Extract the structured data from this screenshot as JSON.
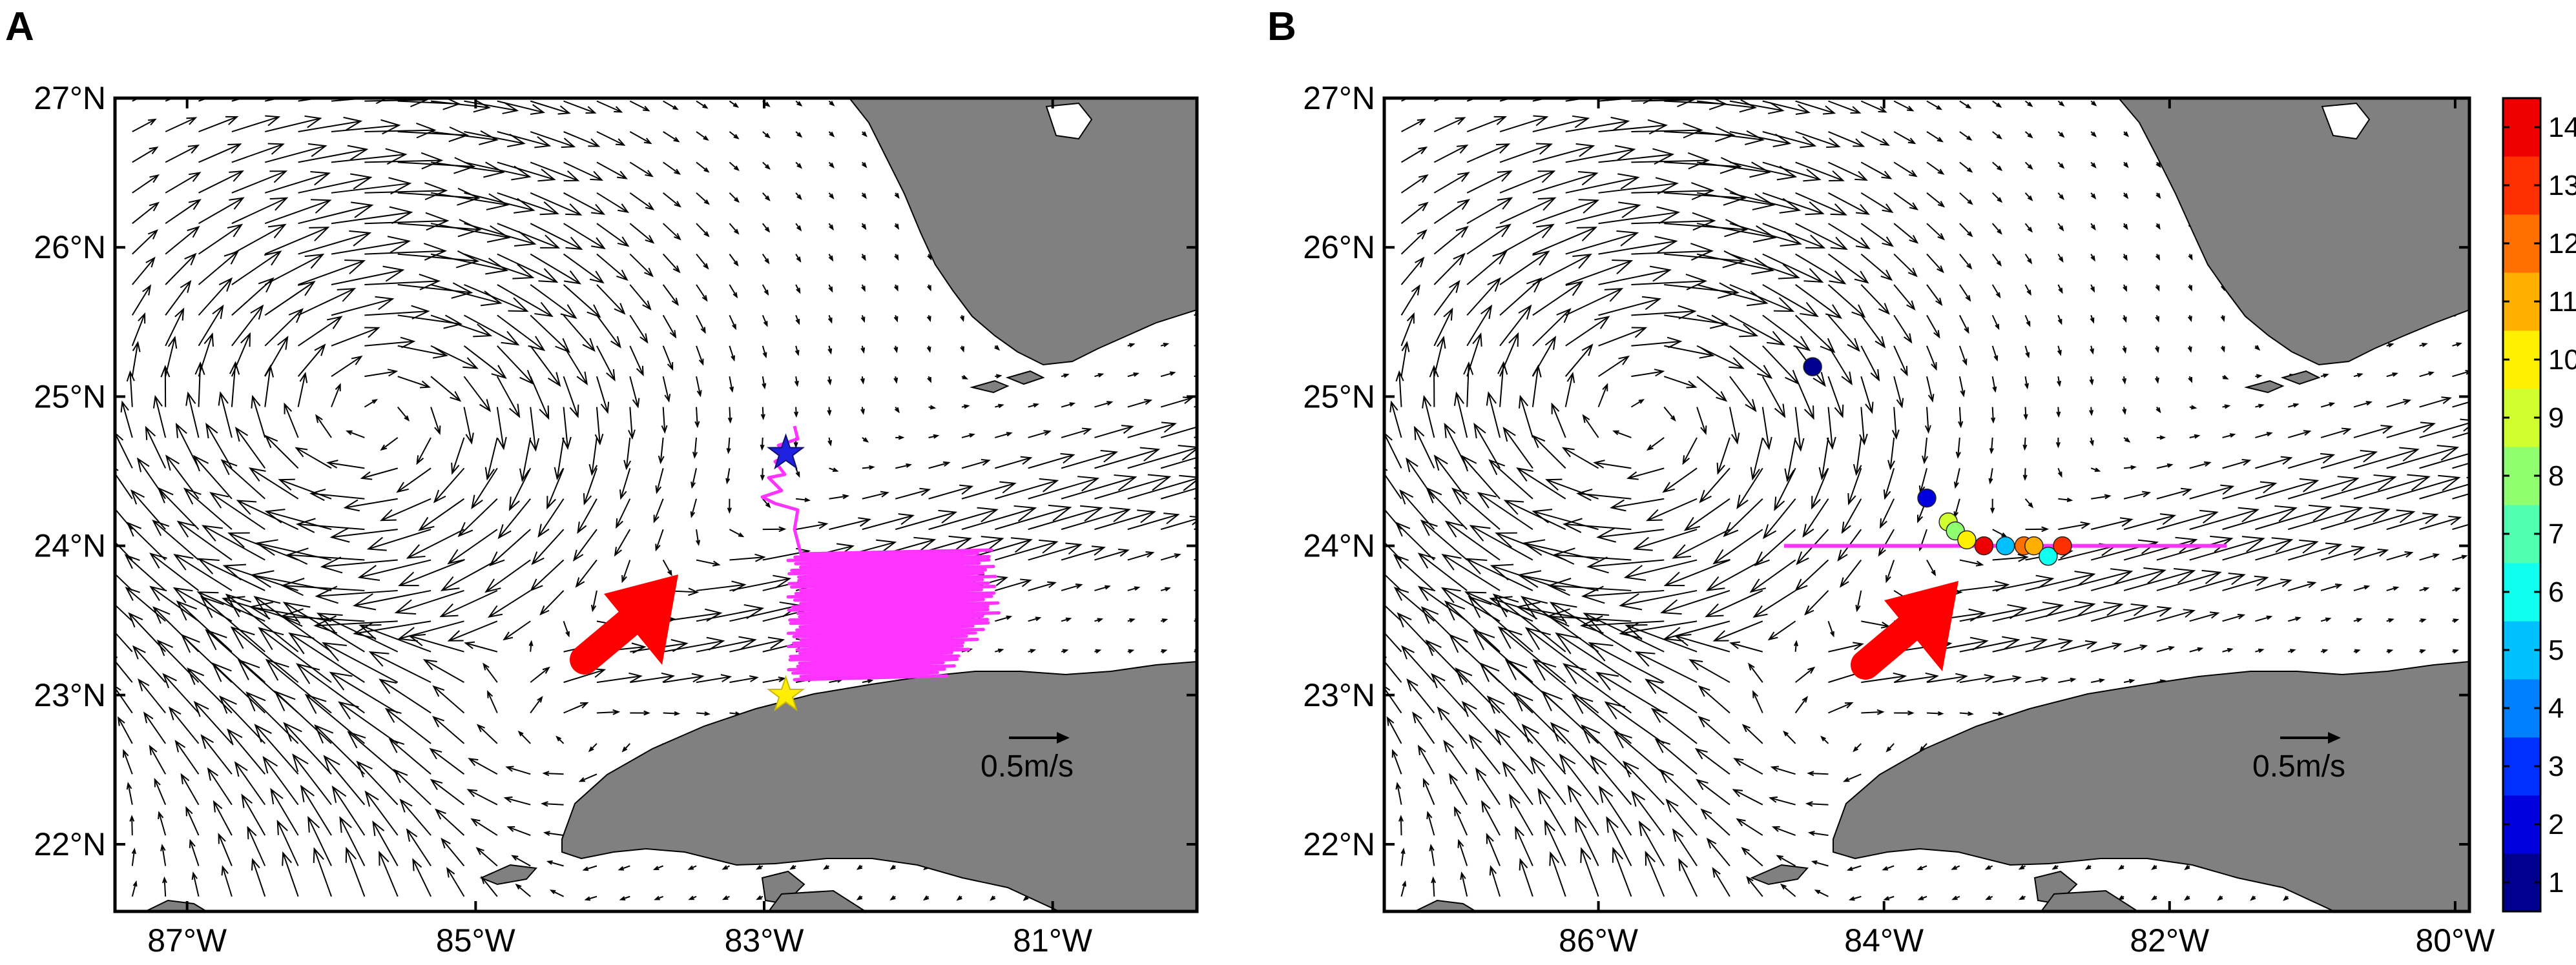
{
  "panels": [
    {
      "letter": "A",
      "lon_range": [
        -87.5,
        -80.0
      ],
      "lat_range": [
        21.55,
        27.0
      ],
      "lon_ticks": [
        {
          "value": -87,
          "label": "87°W"
        },
        {
          "value": -85,
          "label": "85°W"
        },
        {
          "value": -83,
          "label": "83°W"
        },
        {
          "value": -81,
          "label": "81°W"
        }
      ],
      "lat_ticks": [
        {
          "value": 27,
          "label": "27°N"
        },
        {
          "value": 26,
          "label": "26°N"
        },
        {
          "value": 25,
          "label": "25°N"
        },
        {
          "value": 24,
          "label": "24°N"
        },
        {
          "value": 23,
          "label": "23°N"
        },
        {
          "value": 22,
          "label": "22°N"
        }
      ],
      "scale_label": "0.5m/s",
      "markers": [
        {
          "kind": "star",
          "color": "#2020e0",
          "lon": -82.85,
          "lat": 24.62
        },
        {
          "kind": "star",
          "color": "#ffee00",
          "lon": -82.85,
          "lat": 23.0
        }
      ],
      "track_color": "#ff33ff"
    },
    {
      "letter": "B",
      "lon_range": [
        -87.5,
        -79.9
      ],
      "lat_range": [
        21.55,
        27.0
      ],
      "lon_ticks": [
        {
          "value": -86,
          "label": "86°W"
        },
        {
          "value": -84,
          "label": "84°W"
        },
        {
          "value": -82,
          "label": "82°W"
        },
        {
          "value": -80,
          "label": "80°W"
        }
      ],
      "lat_ticks": [
        {
          "value": 27,
          "label": "27°N"
        },
        {
          "value": 26,
          "label": "26°N"
        },
        {
          "value": 25,
          "label": "25°N"
        },
        {
          "value": 24,
          "label": "24°N"
        },
        {
          "value": 23,
          "label": "23°N"
        },
        {
          "value": 22,
          "label": "22°N"
        }
      ],
      "scale_label": "0.5m/s",
      "section_line": {
        "color": "#ff33ff",
        "lon_start": -84.7,
        "lon_end": -81.6,
        "lat": 24.0
      },
      "points": [
        {
          "lon": -84.5,
          "lat": 25.2,
          "value": 1
        },
        {
          "lon": -83.7,
          "lat": 24.32,
          "value": 2
        },
        {
          "lon": -83.55,
          "lat": 24.16,
          "value": 9
        },
        {
          "lon": -83.5,
          "lat": 24.1,
          "value": 8
        },
        {
          "lon": -83.42,
          "lat": 24.04,
          "value": 10
        },
        {
          "lon": -83.3,
          "lat": 24.0,
          "value": 14
        },
        {
          "lon": -83.15,
          "lat": 24.0,
          "value": 5
        },
        {
          "lon": -83.02,
          "lat": 24.0,
          "value": 12
        },
        {
          "lon": -82.95,
          "lat": 24.0,
          "value": 11
        },
        {
          "lon": -82.85,
          "lat": 23.93,
          "value": 6
        },
        {
          "lon": -82.75,
          "lat": 24.0,
          "value": 13
        }
      ]
    }
  ],
  "colorbar": {
    "labels": [
      "1",
      "2",
      "3",
      "4",
      "5",
      "6",
      "7",
      "8",
      "9",
      "10",
      "11",
      "12",
      "13",
      "14"
    ],
    "colors": [
      "#00008f",
      "#0000df",
      "#0030ff",
      "#0080ff",
      "#00c0ff",
      "#10ffef",
      "#50ffaf",
      "#90ff6f",
      "#d0ff2f",
      "#ffef00",
      "#ffaf00",
      "#ff7000",
      "#ff3000",
      "#ef0000"
    ]
  }
}
